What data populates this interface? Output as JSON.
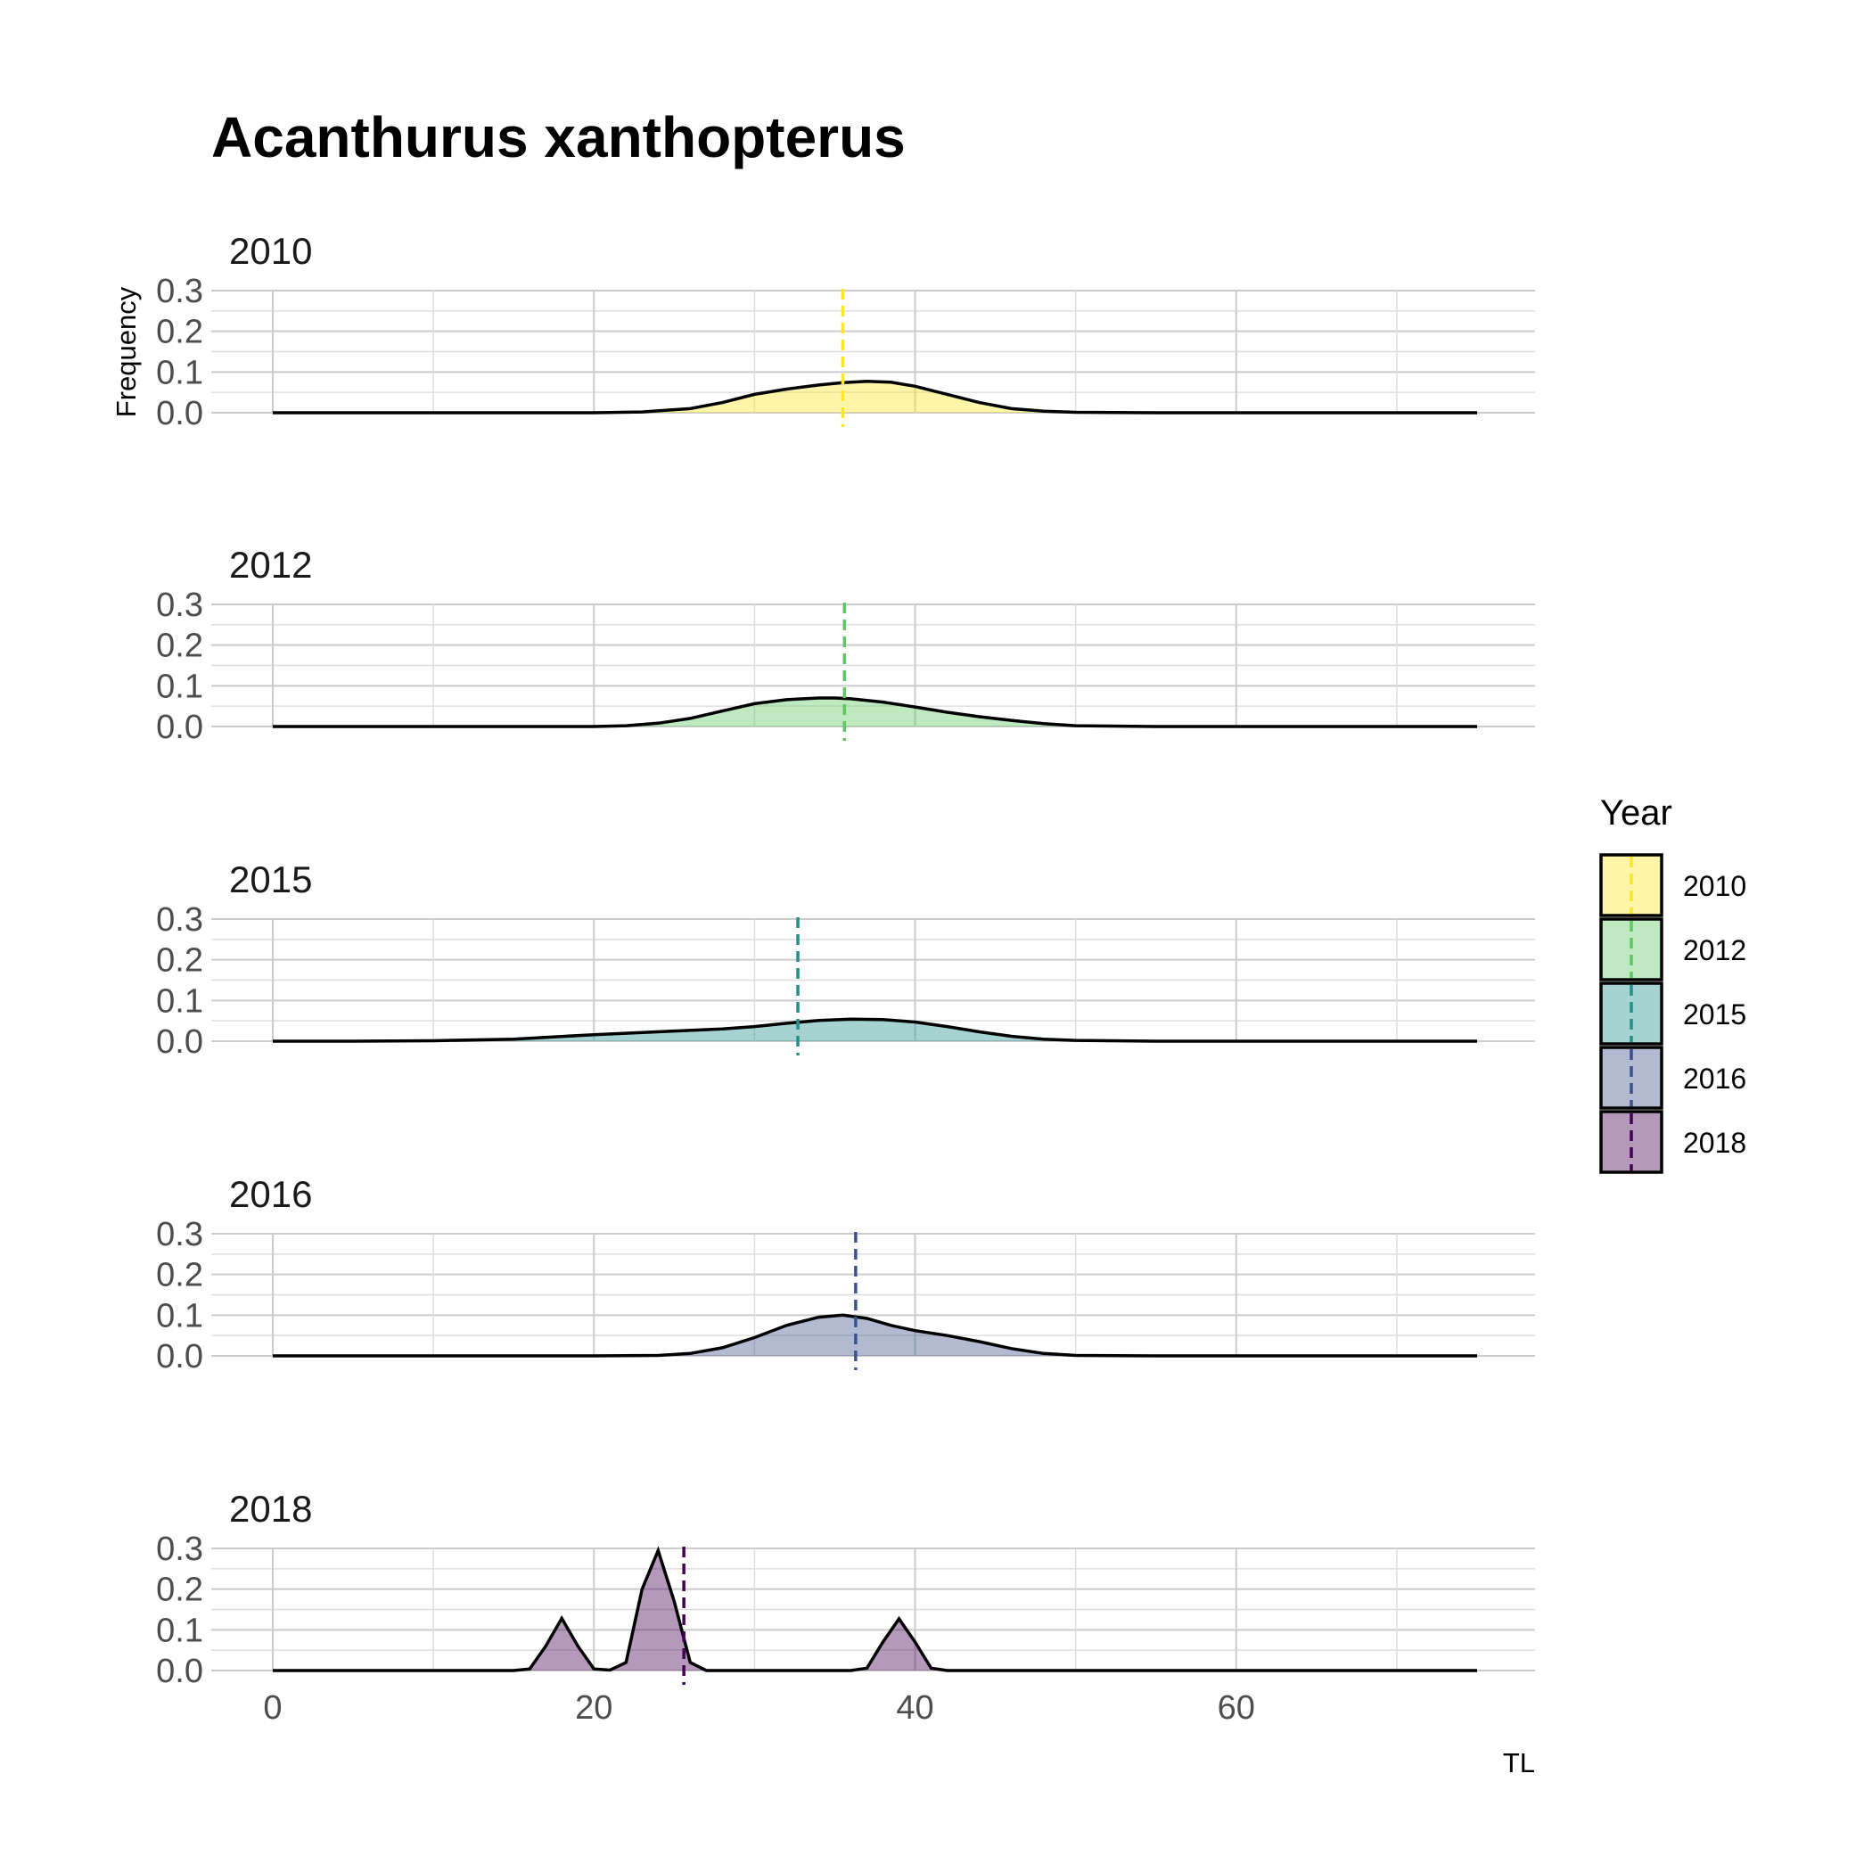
{
  "chart_data": {
    "type": "area",
    "title": "Acanthurus xanthopterus",
    "xlabel": "TL",
    "ylabel": "Frequency",
    "xlim": [
      0,
      75
    ],
    "ylim": [
      0,
      0.3
    ],
    "x_ticks": [
      0,
      20,
      40,
      60
    ],
    "y_ticks": [
      "0.0",
      "0.1",
      "0.2",
      "0.3"
    ],
    "grid": true,
    "legend": {
      "title": "Year",
      "position": "right"
    },
    "series": [
      {
        "name": "2010",
        "color": "#FDE725",
        "mean_line": 35.5,
        "x": [
          0,
          10,
          20,
          23,
          26,
          28,
          30,
          32,
          34,
          35.5,
          37,
          38.5,
          40,
          42,
          44,
          46,
          48,
          50,
          55,
          60,
          70,
          75
        ],
        "y": [
          0,
          0,
          0,
          0.002,
          0.01,
          0.025,
          0.045,
          0.058,
          0.068,
          0.074,
          0.077,
          0.075,
          0.065,
          0.045,
          0.025,
          0.01,
          0.004,
          0.001,
          0,
          0,
          0,
          0
        ]
      },
      {
        "name": "2012",
        "color": "#5EC962",
        "mean_line": 35.6,
        "x": [
          0,
          10,
          20,
          22,
          24,
          26,
          28,
          30,
          32,
          34,
          35,
          36,
          38,
          40,
          42,
          44,
          46,
          48,
          50,
          55,
          60,
          70,
          75
        ],
        "y": [
          0,
          0,
          0,
          0.002,
          0.008,
          0.02,
          0.038,
          0.056,
          0.066,
          0.07,
          0.07,
          0.068,
          0.06,
          0.048,
          0.035,
          0.024,
          0.015,
          0.007,
          0.002,
          0,
          0,
          0,
          0
        ]
      },
      {
        "name": "2015",
        "color": "#21918C",
        "mean_line": 32.7,
        "x": [
          0,
          5,
          10,
          15,
          20,
          25,
          28,
          30,
          32,
          34,
          36,
          38,
          40,
          42,
          44,
          46,
          48,
          50,
          55,
          60,
          70,
          75
        ],
        "y": [
          0,
          0,
          0.001,
          0.005,
          0.016,
          0.025,
          0.03,
          0.036,
          0.044,
          0.051,
          0.054,
          0.053,
          0.047,
          0.036,
          0.023,
          0.012,
          0.005,
          0.002,
          0,
          0,
          0,
          0
        ]
      },
      {
        "name": "2016",
        "color": "#3B528B",
        "mean_line": 36.3,
        "x": [
          0,
          10,
          20,
          24,
          26,
          28,
          30,
          32,
          34,
          35.5,
          37,
          38.5,
          40,
          42,
          44,
          46,
          48,
          50,
          55,
          60,
          70,
          75
        ],
        "y": [
          0,
          0,
          0,
          0.001,
          0.006,
          0.02,
          0.045,
          0.075,
          0.095,
          0.1,
          0.092,
          0.075,
          0.062,
          0.05,
          0.035,
          0.018,
          0.006,
          0.001,
          0,
          0,
          0,
          0
        ]
      },
      {
        "name": "2018",
        "color": "#440154",
        "mean_line": 25.6,
        "x": [
          0,
          10,
          15,
          16,
          17,
          18,
          19,
          20,
          21,
          22,
          23,
          24,
          25,
          26,
          27,
          36,
          37,
          38,
          39,
          40,
          41,
          42,
          50,
          60,
          70,
          75
        ],
        "y": [
          0,
          0,
          0,
          0.004,
          0.06,
          0.128,
          0.06,
          0.004,
          0.001,
          0.02,
          0.2,
          0.295,
          0.17,
          0.02,
          0,
          0,
          0.006,
          0.07,
          0.127,
          0.07,
          0.006,
          0,
          0,
          0,
          0,
          0
        ]
      }
    ]
  }
}
